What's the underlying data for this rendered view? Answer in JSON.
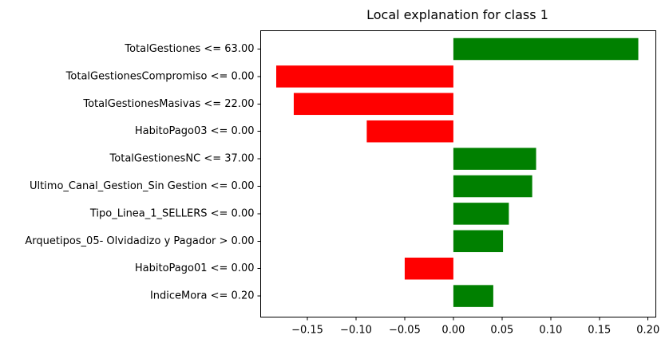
{
  "chart_data": {
    "type": "bar",
    "orientation": "horizontal",
    "title": "Local explanation for class 1",
    "xlabel": "",
    "ylabel": "",
    "xlim": [
      -0.198,
      0.208
    ],
    "grid": false,
    "categories": [
      "TotalGestiones <= 63.00",
      "TotalGestionesCompromiso <= 0.00",
      "TotalGestionesMasivas <= 22.00",
      "HabitoPago03 <= 0.00",
      "TotalGestionesNC <= 37.00",
      "Ultimo_Canal_Gestion_Sin Gestion <= 0.00",
      "Tipo_Linea_1_SELLERS <= 0.00",
      "Arquetipos_05- Olvidadizo y Pagador > 0.00",
      "HabitoPago01 <= 0.00",
      "IndiceMora <= 0.20"
    ],
    "values": [
      0.19,
      -0.182,
      -0.164,
      -0.089,
      0.085,
      0.081,
      0.057,
      0.051,
      -0.05,
      0.041
    ],
    "x_ticks": [
      -0.15,
      -0.1,
      -0.05,
      0.0,
      0.05,
      0.1,
      0.15,
      0.2
    ],
    "x_tick_labels": [
      "−0.15",
      "−0.10",
      "−0.05",
      "0.00",
      "0.05",
      "0.10",
      "0.15",
      "0.20"
    ],
    "colors": {
      "positive": "#008000",
      "negative": "#ff0000",
      "axis": "#000000"
    }
  }
}
